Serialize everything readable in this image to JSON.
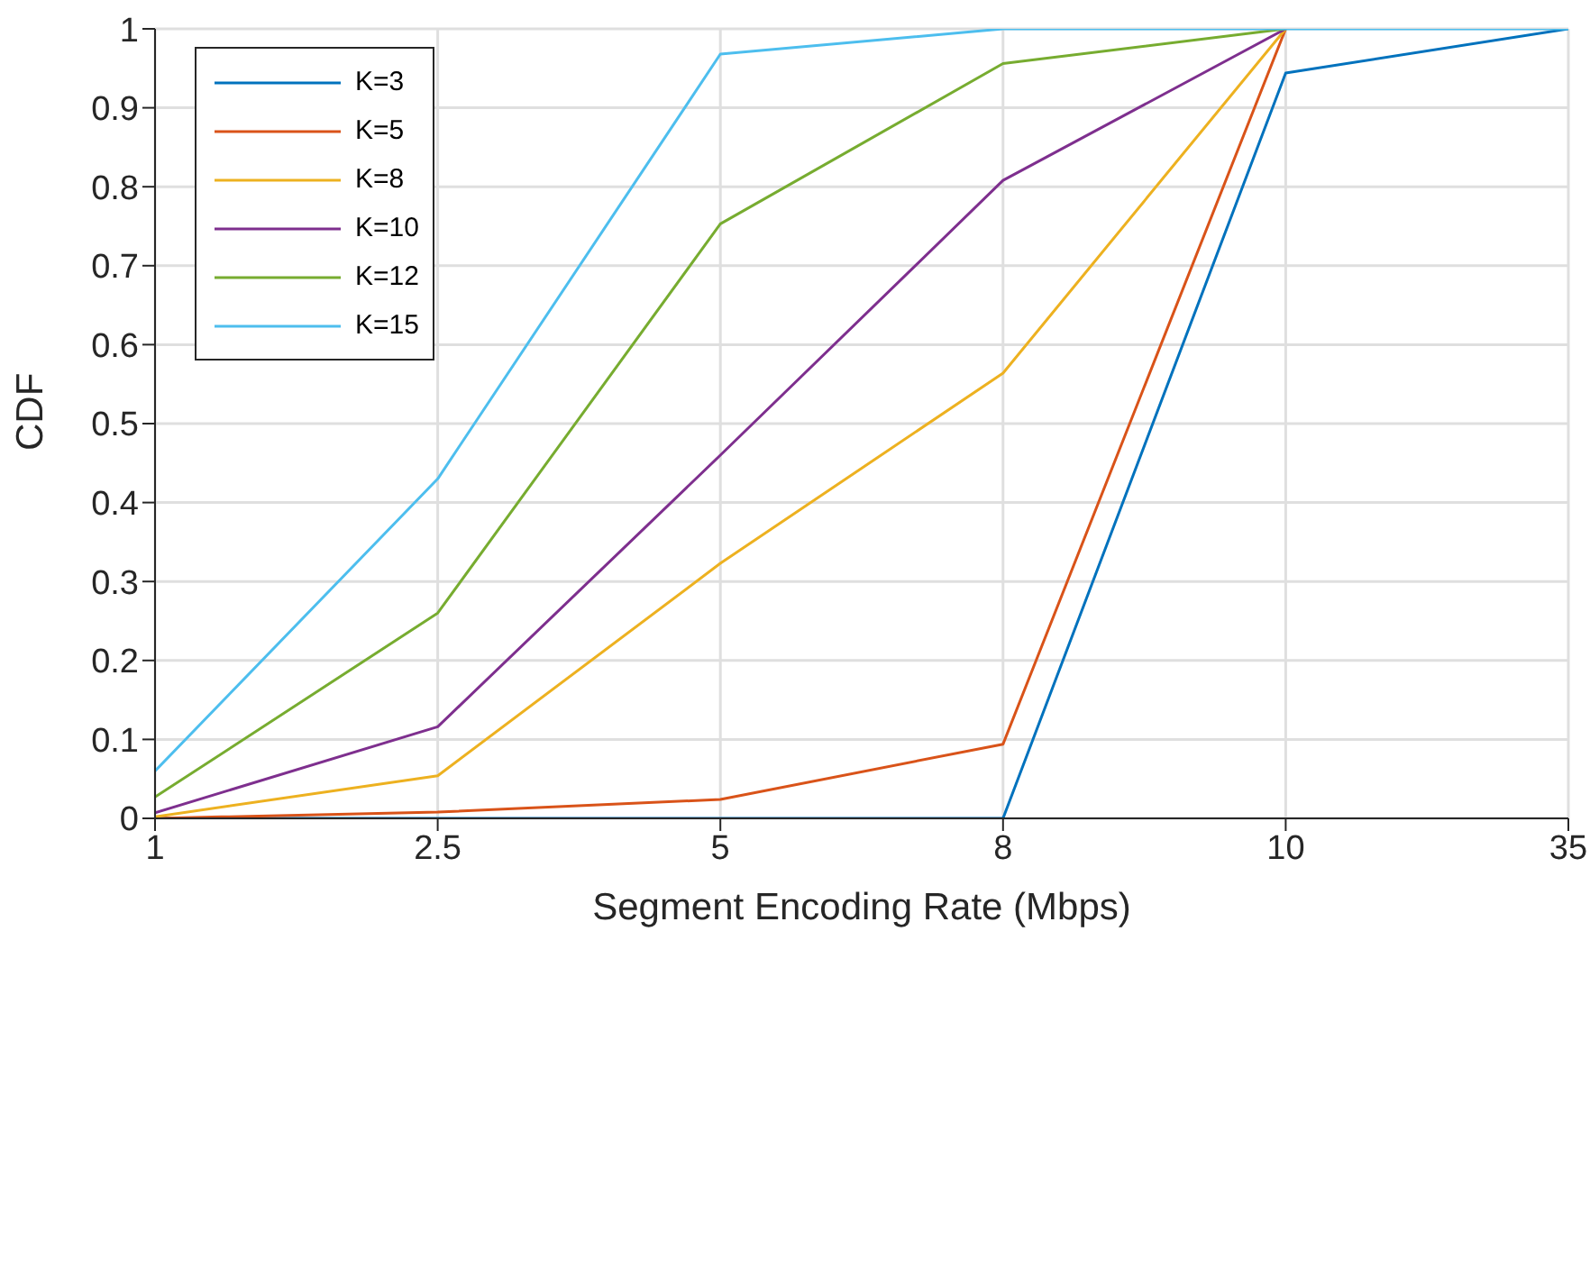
{
  "chart_data": {
    "type": "line",
    "xlabel": "Segment Encoding Rate (Mbps)",
    "ylabel": "CDF",
    "categories": [
      "1",
      "2.5",
      "5",
      "8",
      "10",
      "35"
    ],
    "series": [
      {
        "name": "K=3",
        "color": "#0072bd",
        "values": [
          0,
          0,
          0,
          0,
          0.944,
          1
        ]
      },
      {
        "name": "K=5",
        "color": "#d95319",
        "values": [
          0,
          0.008,
          0.024,
          0.094,
          1,
          null
        ]
      },
      {
        "name": "K=8",
        "color": "#edb120",
        "values": [
          0.002,
          0.054,
          0.323,
          0.564,
          1,
          null
        ]
      },
      {
        "name": "K=10",
        "color": "#7e2f8e",
        "values": [
          0.007,
          0.116,
          0.46,
          0.808,
          1,
          null
        ]
      },
      {
        "name": "K=12",
        "color": "#77ac30",
        "values": [
          0.027,
          0.26,
          0.753,
          0.956,
          1,
          null
        ]
      },
      {
        "name": "K=15",
        "color": "#4dbeee",
        "values": [
          0.06,
          0.43,
          0.968,
          1,
          1,
          1
        ]
      }
    ],
    "ylim": [
      0,
      1
    ],
    "yticks": [
      0,
      0.1,
      0.2,
      0.3,
      0.4,
      0.5,
      0.6,
      0.7,
      0.8,
      0.9,
      1
    ],
    "grid": true,
    "legend": "top left",
    "marker": "none",
    "line_style": "solid"
  }
}
